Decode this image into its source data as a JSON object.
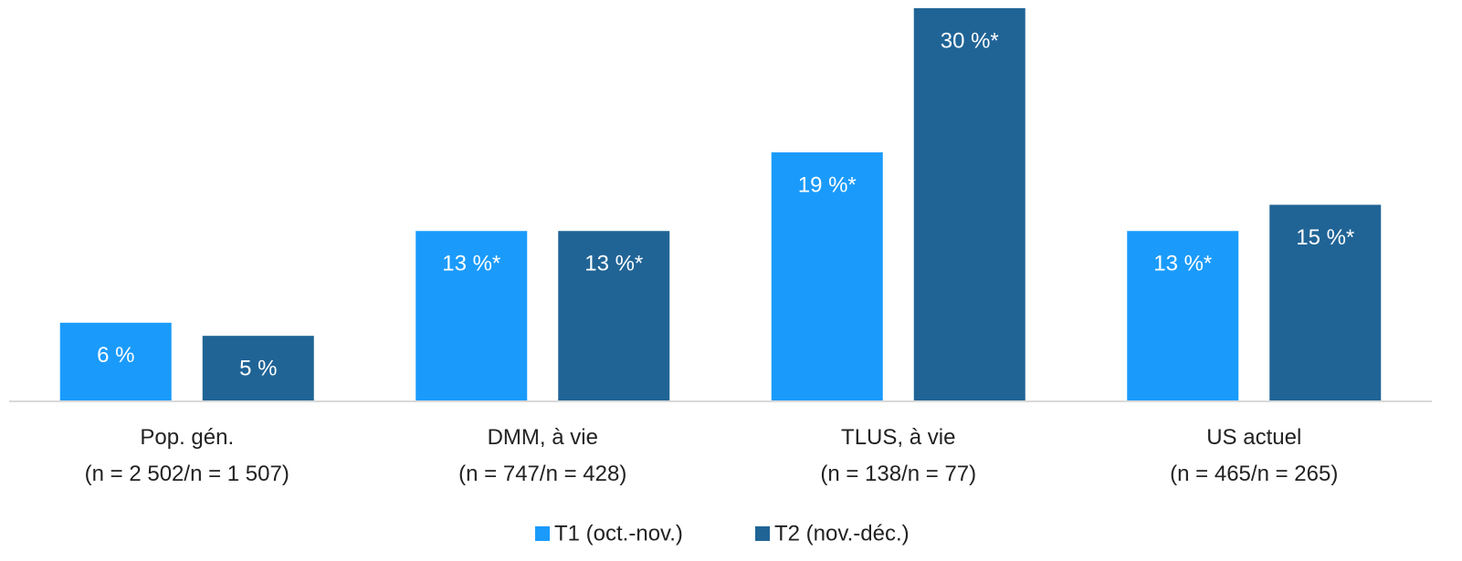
{
  "chart_data": {
    "type": "bar",
    "categories": [
      "Pop. gén.\n(n = 2 502/n = 1 507)",
      "DMM, à vie\n(n = 747/n = 428)",
      "TLUS, à vie\n(n = 138/n = 77)",
      "US actuel\n(n = 465/n = 265)"
    ],
    "series": [
      {
        "name": "T1 (oct.-nov.)",
        "color": "#1a9bfc",
        "values": [
          6,
          13,
          19,
          13
        ],
        "value_labels": [
          "6 %",
          "13 %*",
          "19 %*",
          "13 %*"
        ]
      },
      {
        "name": "T2 (nov.-déc.)",
        "color": "#206496",
        "values": [
          5,
          13,
          30,
          15
        ],
        "value_labels": [
          "5 %",
          "13 %*",
          "30 %*",
          "15 %*"
        ]
      }
    ],
    "legend": "bottom"
  }
}
